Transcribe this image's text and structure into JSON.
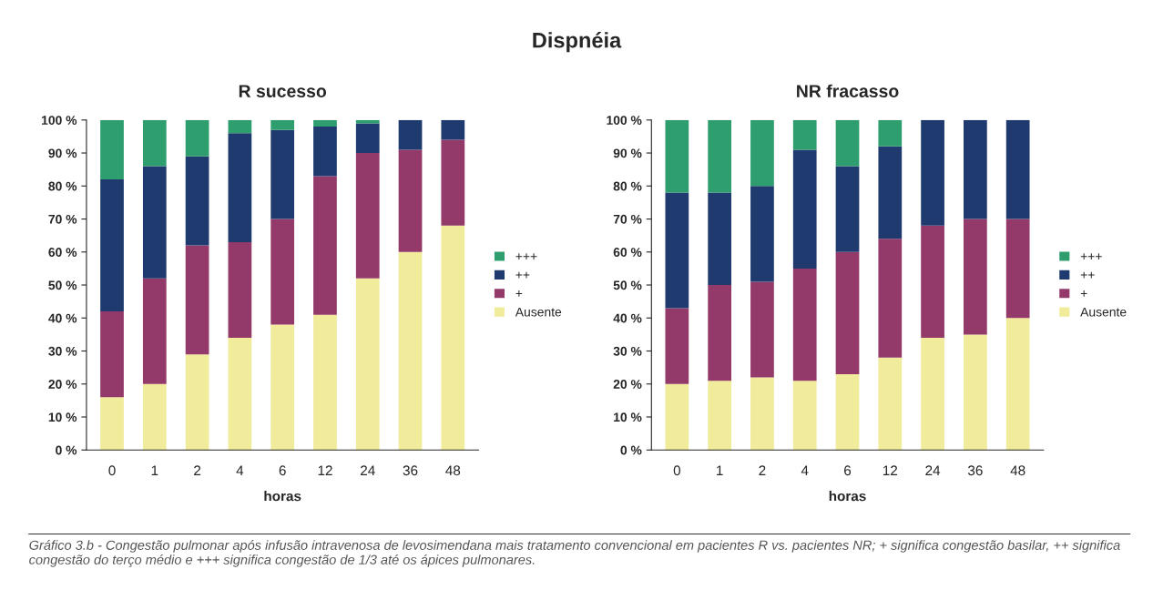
{
  "chart_data": [
    {
      "type": "bar",
      "stacked": true,
      "title": "R sucesso",
      "xlabel": "horas",
      "annotations": [
        "Dispnéia",
        "Gráfico 3.b - Congestão pulmonar após infusão intravenosa de levosimendana mais tratamento convencional em pacientes R vs. pacientes NR; + significa congestão basilar, ++ significa congestão do terço médio e +++ significa congestão de 1/3 até os ápices pulmonares."
      ],
      "categories": [
        "0",
        "1",
        "2",
        "4",
        "6",
        "12",
        "24",
        "36",
        "48"
      ],
      "series": [
        {
          "name": "Ausente",
          "color": "#f0ec9c",
          "values": [
            16,
            20,
            29,
            34,
            38,
            41,
            52,
            60,
            68
          ]
        },
        {
          "name": "+",
          "color": "#943a6a",
          "values": [
            26,
            32,
            33,
            29,
            32,
            42,
            38,
            31,
            26
          ]
        },
        {
          "name": "++",
          "color": "#1f3a6e",
          "values": [
            40,
            34,
            27,
            33,
            27,
            15,
            9,
            9,
            6
          ]
        },
        {
          "name": "+++",
          "color": "#2e9e6e",
          "values": [
            18,
            14,
            11,
            4,
            3,
            2,
            1,
            0,
            0
          ]
        }
      ],
      "ylim": [
        0,
        100
      ],
      "yticks": [
        {
          "value": 0,
          "label": "0 %"
        },
        {
          "value": 10,
          "label": "10 %"
        },
        {
          "value": 20,
          "label": "20 %"
        },
        {
          "value": 30,
          "label": "30 %"
        },
        {
          "value": 40,
          "label": "40 %"
        },
        {
          "value": 50,
          "label": "50 %"
        },
        {
          "value": 60,
          "label": "60 %"
        },
        {
          "value": 70,
          "label": "70 %"
        },
        {
          "value": 80,
          "label": "80 %"
        },
        {
          "value": 90,
          "label": "90 %"
        },
        {
          "value": 100,
          "label": "100 %"
        }
      ],
      "legend": "right",
      "grid": false
    },
    {
      "type": "bar",
      "stacked": true,
      "title": "NR fracasso",
      "xlabel": "horas",
      "categories": [
        "0",
        "1",
        "2",
        "4",
        "6",
        "12",
        "24",
        "36",
        "48"
      ],
      "series": [
        {
          "name": "Ausente",
          "color": "#f0ec9c",
          "values": [
            20,
            21,
            22,
            21,
            23,
            28,
            34,
            35,
            40
          ]
        },
        {
          "name": "+",
          "color": "#943a6a",
          "values": [
            23,
            29,
            29,
            34,
            37,
            36,
            34,
            35,
            30
          ]
        },
        {
          "name": "++",
          "color": "#1f3a6e",
          "values": [
            35,
            28,
            29,
            36,
            26,
            28,
            32,
            30,
            30
          ]
        },
        {
          "name": "+++",
          "color": "#2e9e6e",
          "values": [
            22,
            22,
            20,
            9,
            14,
            8,
            0,
            0,
            0
          ]
        }
      ],
      "ylim": [
        0,
        100
      ],
      "yticks": [
        {
          "value": 0,
          "label": "0 %"
        },
        {
          "value": 10,
          "label": "10 %"
        },
        {
          "value": 20,
          "label": "20 %"
        },
        {
          "value": 30,
          "label": "30 %"
        },
        {
          "value": 40,
          "label": "40 %"
        },
        {
          "value": 50,
          "label": "50 %"
        },
        {
          "value": 60,
          "label": "60 %"
        },
        {
          "value": 70,
          "label": "70 %"
        },
        {
          "value": 80,
          "label": "80 %"
        },
        {
          "value": 90,
          "label": "90 %"
        },
        {
          "value": 100,
          "label": "100 %"
        }
      ],
      "legend": "right",
      "grid": false
    }
  ]
}
